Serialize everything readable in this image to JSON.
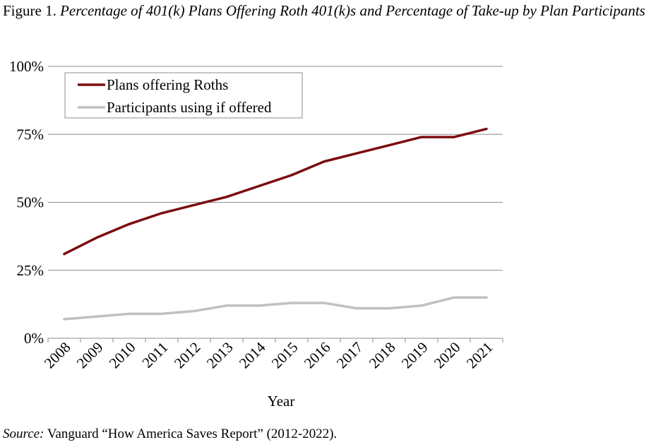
{
  "figure": {
    "label": "Figure 1.",
    "title": "Percentage of 401(k) Plans Offering Roth 401(k)s and Percentage of Take-up by Plan Participants"
  },
  "source": {
    "label": "Source:",
    "text": "Vanguard “How America Saves Report” (2012-2022)."
  },
  "chart_data": {
    "type": "line",
    "categories": [
      "2008",
      "2009",
      "2010",
      "2011",
      "2012",
      "2013",
      "2014",
      "2015",
      "2016",
      "2017",
      "2018",
      "2019",
      "2020",
      "2021"
    ],
    "series": [
      {
        "name": "Plans offering Roths",
        "color": "#7b0c10",
        "values": [
          31,
          37,
          42,
          46,
          49,
          52,
          56,
          60,
          65,
          68,
          71,
          74,
          74,
          77
        ]
      },
      {
        "name": "Participants using if offered",
        "color": "#c0c0c0",
        "values": [
          7,
          8,
          9,
          9,
          10,
          12,
          12,
          13,
          13,
          11,
          11,
          12,
          15,
          15
        ]
      }
    ],
    "xlabel": "Year",
    "ylabel": "",
    "ylim": [
      0,
      100
    ],
    "yticks": [
      0,
      25,
      50,
      75,
      100
    ],
    "ytick_labels": [
      "0%",
      "25%",
      "50%",
      "75%",
      "100%"
    ],
    "grid": "horizontal",
    "legend_position": "top-left"
  }
}
